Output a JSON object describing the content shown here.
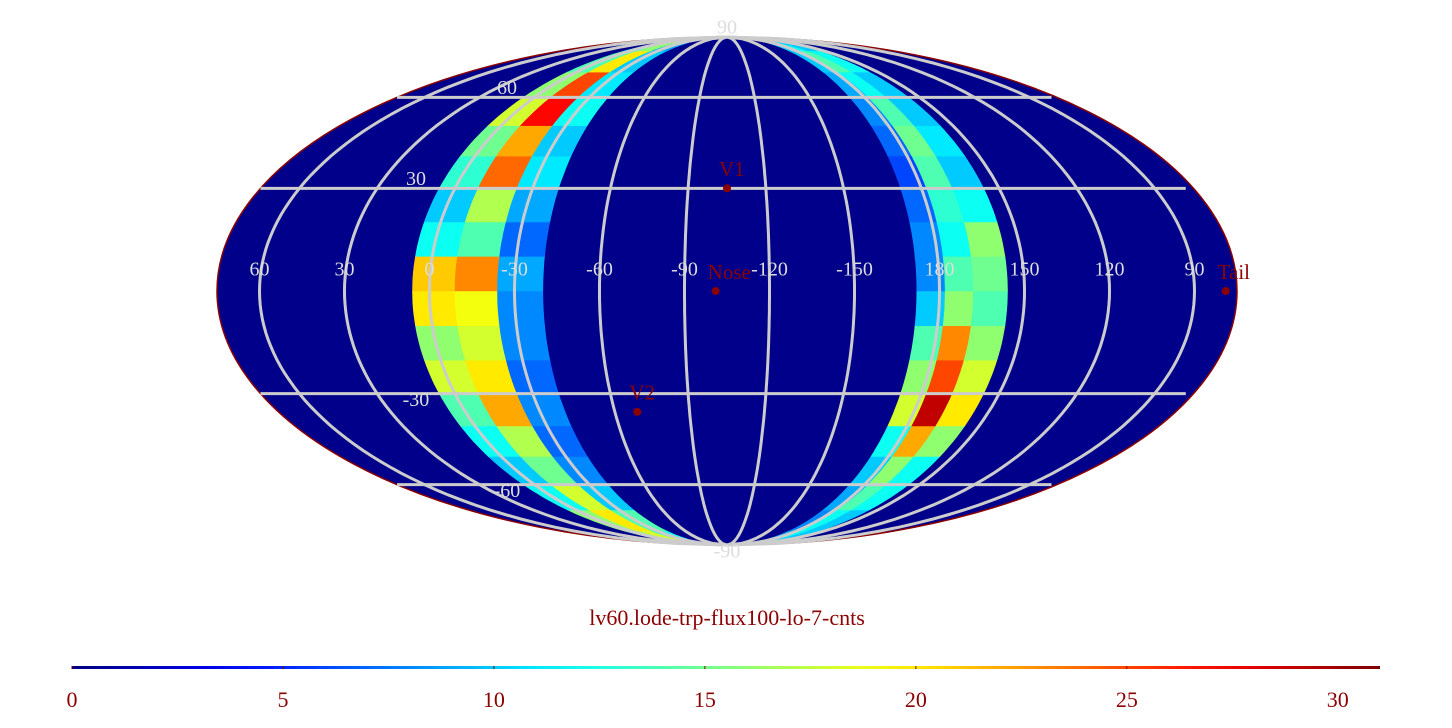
{
  "chart_data": {
    "type": "mollweide-heatmap",
    "title": "lv60.lode-trp-flux100-lo-7-cnts",
    "center_lon": -105,
    "colormap": "jet",
    "clim": [
      0,
      31
    ],
    "cbar_ticks": [
      0,
      5,
      10,
      15,
      20,
      25,
      30
    ],
    "background_color": "#00008b",
    "grid_color": "#cccccc",
    "meridians": [
      60,
      30,
      0,
      -30,
      -60,
      -90,
      -120,
      -150,
      180,
      150,
      120,
      90
    ],
    "parallels": [
      90,
      60,
      30,
      -30,
      -60,
      -90
    ],
    "bands": [
      {
        "lon_edges": [
          6,
          -9,
          -24,
          -40
        ],
        "lat_edges": [
          -90,
          -80,
          -70,
          -60,
          -50,
          -40,
          -30,
          -20,
          -10,
          0,
          10,
          20,
          30,
          40,
          50,
          60,
          70,
          80,
          90
        ],
        "values": [
          [
            14,
            18,
            12
          ],
          [
            16,
            20,
            14
          ],
          [
            12,
            18,
            10
          ],
          [
            10,
            15,
            8
          ],
          [
            12,
            17,
            7
          ],
          [
            14,
            22,
            8
          ],
          [
            18,
            20,
            7
          ],
          [
            16,
            18,
            8
          ],
          [
            20,
            19,
            8
          ],
          [
            21,
            23,
            9
          ],
          [
            12,
            14,
            7
          ],
          [
            10,
            17,
            9
          ],
          [
            13,
            24,
            11
          ],
          [
            15,
            22,
            10
          ],
          [
            18,
            27,
            12
          ],
          [
            16,
            25,
            11
          ],
          [
            14,
            20,
            10
          ],
          [
            12,
            16,
            9
          ]
        ]
      },
      {
        "lon_edges": [
          188,
          178,
          168,
          156
        ],
        "lat_edges": [
          -90,
          -80,
          -70,
          -60,
          -50,
          -40,
          -30,
          -20,
          -10,
          0,
          10,
          20,
          30,
          40,
          50,
          60,
          70,
          80,
          90
        ],
        "values": [
          [
            9,
            12,
            10
          ],
          [
            8,
            12,
            10
          ],
          [
            9,
            14,
            12
          ],
          [
            10,
            16,
            12
          ],
          [
            12,
            22,
            16
          ],
          [
            18,
            29,
            20
          ],
          [
            16,
            25,
            18
          ],
          [
            14,
            23,
            16
          ],
          [
            10,
            16,
            14
          ],
          [
            8,
            14,
            15
          ],
          [
            8,
            12,
            16
          ],
          [
            7,
            13,
            12
          ],
          [
            6,
            14,
            10
          ],
          [
            7,
            15,
            11
          ],
          [
            8,
            14,
            10
          ],
          [
            9,
            12,
            10
          ],
          [
            10,
            14,
            12
          ],
          [
            10,
            12,
            10
          ]
        ]
      }
    ],
    "markers": [
      {
        "name": "Nose",
        "lon": -101,
        "lat": 0,
        "color": "#8b0000"
      },
      {
        "name": "V1",
        "lon": -105,
        "lat": 30,
        "color": "#8b0000"
      },
      {
        "name": "V2",
        "lon": -69,
        "lat": -35.6,
        "color": "#8b0000"
      },
      {
        "name": "Tail",
        "lon": 79,
        "lat": 0,
        "color": "#8b0000"
      }
    ]
  }
}
